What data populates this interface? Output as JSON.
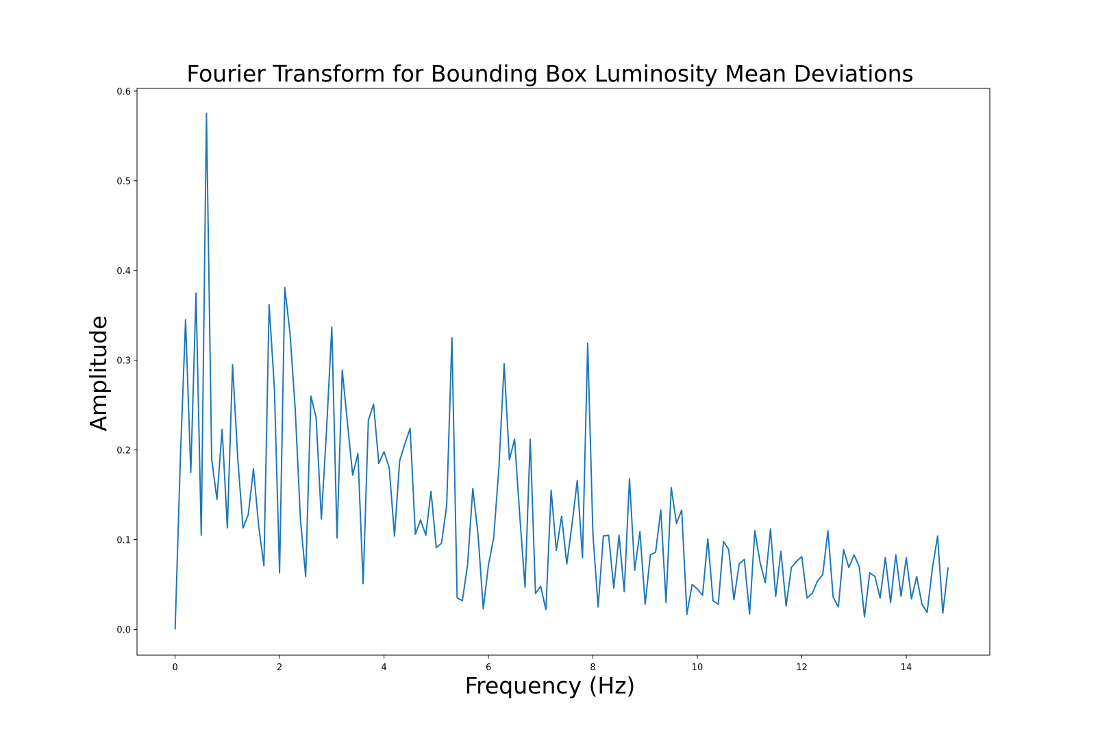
{
  "chart_data": {
    "type": "line",
    "title": "Fourier Transform for Bounding Box Luminosity Mean Deviations",
    "xlabel": "Frequency (Hz)",
    "ylabel": "Amplitude",
    "xlim": [
      -0.73,
      15.6
    ],
    "ylim": [
      -0.0287,
      0.603
    ],
    "xticks": [
      0,
      2,
      4,
      6,
      8,
      10,
      12,
      14
    ],
    "yticks": [
      0.0,
      0.1,
      0.2,
      0.3,
      0.4,
      0.5,
      0.6
    ],
    "xtick_labels": [
      "0",
      "2",
      "4",
      "6",
      "8",
      "10",
      "12",
      "14"
    ],
    "ytick_labels": [
      "0.0",
      "0.1",
      "0.2",
      "0.3",
      "0.4",
      "0.5",
      "0.6"
    ],
    "grid": false,
    "legend": "none",
    "line_color": "#1f77b4",
    "series": [
      {
        "x": [
          0.0,
          0.1,
          0.2,
          0.3,
          0.4,
          0.5,
          0.6,
          0.7,
          0.8,
          0.9,
          1.0,
          1.1,
          1.2,
          1.3,
          1.4,
          1.5,
          1.6,
          1.7,
          1.8,
          1.9,
          2.0,
          2.1,
          2.2,
          2.3,
          2.4,
          2.5,
          2.6,
          2.7,
          2.8,
          2.9,
          3.0,
          3.1,
          3.2,
          3.3,
          3.4,
          3.5,
          3.6,
          3.7,
          3.8,
          3.9,
          4.0,
          4.1,
          4.2,
          4.3,
          4.4,
          4.5,
          4.6,
          4.7,
          4.8,
          4.9,
          5.0,
          5.1,
          5.2,
          5.3,
          5.4,
          5.5,
          5.6,
          5.7,
          5.8,
          5.9,
          6.0,
          6.1,
          6.2,
          6.3,
          6.4,
          6.5,
          6.6,
          6.7,
          6.8,
          6.9,
          7.0,
          7.1,
          7.2,
          7.3,
          7.4,
          7.5,
          7.6,
          7.7,
          7.8,
          7.9,
          8.0,
          8.1,
          8.2,
          8.3,
          8.4,
          8.5,
          8.6,
          8.7,
          8.8,
          8.9,
          9.0,
          9.1,
          9.2,
          9.3,
          9.4,
          9.5,
          9.6,
          9.7,
          9.8,
          9.9,
          10.0,
          10.1,
          10.2,
          10.3,
          10.4,
          10.5,
          10.6,
          10.7,
          10.8,
          10.9,
          11.0,
          11.1,
          11.2,
          11.3,
          11.4,
          11.5,
          11.6,
          11.7,
          11.8,
          11.9,
          12.0,
          12.1,
          12.2,
          12.3,
          12.4,
          12.5,
          12.6,
          12.7,
          12.8,
          12.9,
          13.0,
          13.1,
          13.2,
          13.3,
          13.4,
          13.5,
          13.6,
          13.7,
          13.8,
          13.9,
          14.0,
          14.1,
          14.2,
          14.3,
          14.4,
          14.5,
          14.6,
          14.7,
          14.8
        ],
        "values": [
          0.0,
          0.19,
          0.345,
          0.175,
          0.375,
          0.105,
          0.575,
          0.19,
          0.145,
          0.223,
          0.113,
          0.295,
          0.19,
          0.113,
          0.128,
          0.179,
          0.115,
          0.071,
          0.362,
          0.27,
          0.063,
          0.381,
          0.33,
          0.245,
          0.122,
          0.059,
          0.26,
          0.236,
          0.123,
          0.223,
          0.337,
          0.102,
          0.289,
          0.23,
          0.172,
          0.196,
          0.051,
          0.233,
          0.251,
          0.185,
          0.198,
          0.18,
          0.104,
          0.188,
          0.207,
          0.224,
          0.106,
          0.122,
          0.105,
          0.154,
          0.091,
          0.096,
          0.138,
          0.325,
          0.035,
          0.032,
          0.072,
          0.157,
          0.106,
          0.023,
          0.072,
          0.102,
          0.18,
          0.296,
          0.189,
          0.212,
          0.126,
          0.047,
          0.212,
          0.04,
          0.048,
          0.022,
          0.155,
          0.088,
          0.126,
          0.073,
          0.117,
          0.166,
          0.08,
          0.319,
          0.106,
          0.025,
          0.104,
          0.105,
          0.046,
          0.105,
          0.042,
          0.168,
          0.066,
          0.109,
          0.028,
          0.083,
          0.086,
          0.133,
          0.03,
          0.158,
          0.118,
          0.133,
          0.017,
          0.05,
          0.045,
          0.038,
          0.101,
          0.032,
          0.028,
          0.098,
          0.089,
          0.033,
          0.073,
          0.078,
          0.017,
          0.11,
          0.075,
          0.052,
          0.112,
          0.037,
          0.087,
          0.026,
          0.069,
          0.076,
          0.081,
          0.035,
          0.04,
          0.054,
          0.061,
          0.11,
          0.036,
          0.025,
          0.089,
          0.069,
          0.083,
          0.07,
          0.014,
          0.063,
          0.059,
          0.035,
          0.08,
          0.03,
          0.083,
          0.037,
          0.08,
          0.034,
          0.059,
          0.028,
          0.019,
          0.068,
          0.104,
          0.018,
          0.069
        ]
      }
    ]
  }
}
